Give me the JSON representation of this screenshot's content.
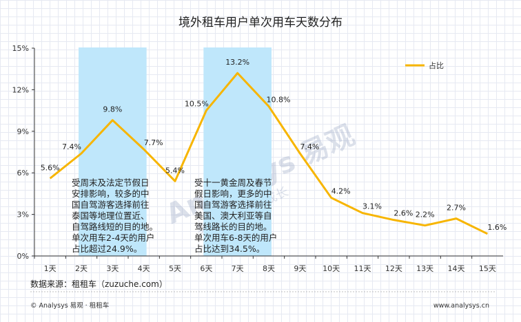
{
  "chart_data": {
    "type": "line",
    "title": "境外租车用户单次用车天数分布",
    "categories": [
      "1天",
      "2天",
      "3天",
      "4天",
      "5天",
      "6天",
      "7天",
      "8天",
      "9天",
      "10天",
      "11天",
      "12天",
      "13天",
      "14天",
      "15天"
    ],
    "series": [
      {
        "name": "占比",
        "values": [
          5.6,
          7.4,
          9.8,
          7.7,
          5.4,
          10.5,
          13.2,
          10.8,
          7.4,
          4.2,
          3.1,
          2.6,
          2.2,
          2.7,
          1.6
        ],
        "color": "#f7b500"
      }
    ],
    "data_labels": [
      "5.6%",
      "7.4%",
      "9.8%",
      "7.7%",
      "5.4%",
      "10.5%",
      "13.2%",
      "10.8%",
      "7.4%",
      "4.2%",
      "3.1%",
      "2.6%",
      "2.2%",
      "2.7%",
      "1.6%"
    ],
    "y_ticks": [
      "0%",
      "3%",
      "6%",
      "9%",
      "12%",
      "15%"
    ],
    "ylim": [
      0,
      15
    ],
    "grid": false,
    "legend_position": "top-right",
    "highlight_bands": [
      {
        "from": "2天",
        "to": "4天",
        "color": "#bfe7fb"
      },
      {
        "from": "6天",
        "to": "8天",
        "color": "#bfe7fb"
      }
    ],
    "annotations": [
      {
        "lines": [
          "受周末及法定节假日",
          "安排影响，较多的中",
          "国自驾游客选择前往",
          "泰国等地理位置近、",
          "自驾路线短的目的地。",
          "单次用车2-4天的用户",
          "占比超过24.9%。"
        ]
      },
      {
        "lines": [
          "受十一黄金周及春节",
          "假日影响，更多的中",
          "国自驾游客选择前往",
          "美国、澳大利亚等自",
          "驾线路长的目的地。",
          "单次用车6-8天的用户",
          "占比达到34.5%。"
        ]
      }
    ]
  },
  "source": "数据来源：租租车（zuzuche.com）",
  "footer": {
    "left": "© Analysys 易观 · 租租车",
    "right": "www.analysys.cn"
  },
  "watermark": {
    "main": "Analysys 易观",
    "sub": "实现用户资产成长"
  }
}
